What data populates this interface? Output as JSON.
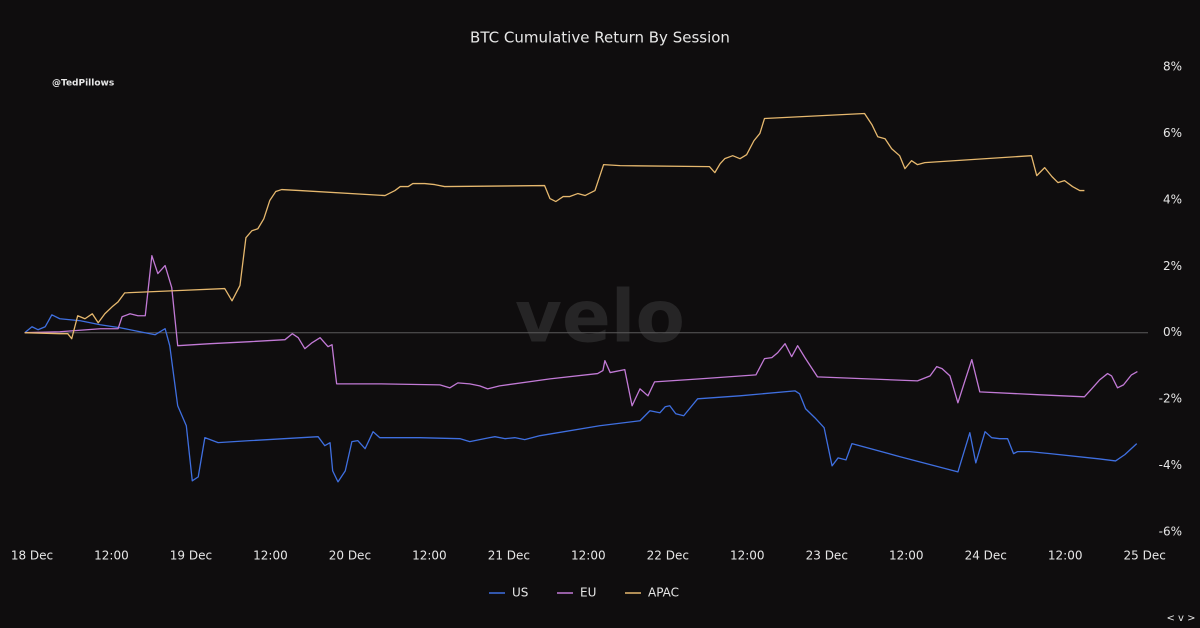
{
  "chart_data": {
    "type": "line",
    "title": "BTC Cumulative Return By Session",
    "watermark": "velo",
    "source_handle": "@TedPillows",
    "navigation": "< v >",
    "xlim": [
      -1.1,
      168.5
    ],
    "xticks": [
      {
        "value": 0,
        "label": "18 Dec"
      },
      {
        "value": 12,
        "label": "12:00"
      },
      {
        "value": 24,
        "label": "19 Dec"
      },
      {
        "value": 36,
        "label": "12:00"
      },
      {
        "value": 48,
        "label": "20 Dec"
      },
      {
        "value": 60,
        "label": "12:00"
      },
      {
        "value": 72,
        "label": "21 Dec"
      },
      {
        "value": 84,
        "label": "12:00"
      },
      {
        "value": 96,
        "label": "22 Dec"
      },
      {
        "value": 108,
        "label": "12:00"
      },
      {
        "value": 120,
        "label": "23 Dec"
      },
      {
        "value": 132,
        "label": "12:00"
      },
      {
        "value": 144,
        "label": "24 Dec"
      },
      {
        "value": 156,
        "label": "12:00"
      },
      {
        "value": 168,
        "label": "25 Dec"
      }
    ],
    "ylim": [
      -6,
      8
    ],
    "yticks": [
      {
        "value": 8,
        "label": "8%"
      },
      {
        "value": 6,
        "label": "6%"
      },
      {
        "value": 4,
        "label": "4%"
      },
      {
        "value": 2,
        "label": "2%"
      },
      {
        "value": 0,
        "label": "0%"
      },
      {
        "value": -2,
        "label": "-2%"
      },
      {
        "value": -4,
        "label": "-4%"
      },
      {
        "value": -6,
        "label": "-6%"
      }
    ],
    "y_axis_side": "right",
    "zero_line": true,
    "legend": "bottom",
    "series": [
      {
        "name": "US",
        "color": "#3f6fe0",
        "x": [
          -1.1,
          0,
          0.9,
          2,
          3,
          4.2,
          7.3,
          10.3,
          13.3,
          16.3,
          18.6,
          20.1,
          20.8,
          22,
          23.3,
          24.2,
          25.1,
          26.1,
          28.1,
          32.9,
          43.2,
          44.2,
          45,
          45.4,
          46.2,
          47.3,
          48.3,
          49.2,
          50.3,
          51.5,
          52.5,
          58.6,
          64.6,
          66.1,
          67.6,
          69.1,
          69.9,
          71.4,
          72.9,
          74.4,
          76.7,
          85.7,
          91.8,
          93.3,
          94.8,
          95.6,
          96.3,
          97.2,
          98.4,
          100.5,
          106.9,
          115.2,
          115.9,
          116.8,
          118.2,
          119.6,
          120.8,
          121.7,
          122.9,
          123.8,
          131,
          139.8,
          141.6,
          142.5,
          143.9,
          144.9,
          146.1,
          147.3,
          148.2,
          148.8,
          150.6,
          153.7,
          161.2,
          163.6,
          165,
          166.8
        ],
        "values": [
          0,
          0.18,
          0.09,
          0.18,
          0.54,
          0.42,
          0.36,
          0.24,
          0.15,
          0.03,
          -0.06,
          0.12,
          -0.39,
          -2.2,
          -2.8,
          -4.46,
          -4.34,
          -3.16,
          -3.31,
          -3.25,
          -3.13,
          -3.4,
          -3.31,
          -4.16,
          -4.49,
          -4.16,
          -3.28,
          -3.25,
          -3.49,
          -2.98,
          -3.16,
          -3.16,
          -3.19,
          -3.28,
          -3.22,
          -3.16,
          -3.13,
          -3.19,
          -3.16,
          -3.22,
          -3.1,
          -2.8,
          -2.65,
          -2.35,
          -2.41,
          -2.23,
          -2.2,
          -2.44,
          -2.5,
          -1.99,
          -1.9,
          -1.75,
          -1.84,
          -2.29,
          -2.56,
          -2.86,
          -4.01,
          -3.77,
          -3.83,
          -3.34,
          -3.73,
          -4.19,
          -3.01,
          -3.92,
          -2.98,
          -3.16,
          -3.19,
          -3.19,
          -3.64,
          -3.58,
          -3.58,
          -3.64,
          -3.8,
          -3.86,
          -3.67,
          -3.34
        ]
      },
      {
        "name": "EU",
        "color": "#c27ad6",
        "x": [
          -1.1,
          4.2,
          10.3,
          13,
          13.6,
          14.8,
          16,
          17.1,
          18.1,
          19,
          20.1,
          21.1,
          22,
          26.9,
          32.9,
          38.2,
          39.3,
          40.2,
          41.2,
          42.3,
          43.5,
          44.7,
          45.3,
          46,
          52.5,
          61.6,
          63.1,
          64.3,
          66.1,
          67.6,
          68.8,
          70.6,
          78.2,
          85.4,
          86.2,
          86.5,
          87.3,
          89.5,
          90.6,
          91.8,
          93,
          94,
          100.8,
          109.3,
          110.6,
          111.7,
          112.6,
          113.7,
          114.7,
          115.6,
          116.7,
          118.6,
          133.7,
          135.6,
          136.6,
          137.4,
          138.6,
          139.8,
          141,
          141.9,
          143.1,
          152.2,
          158.9,
          160,
          161.2,
          162.4,
          163,
          163.9,
          164.8,
          166,
          166.9
        ],
        "values": [
          0,
          0.03,
          0.12,
          0.12,
          0.48,
          0.57,
          0.51,
          0.51,
          2.32,
          1.78,
          2.02,
          1.36,
          -0.39,
          -0.33,
          -0.27,
          -0.21,
          -0.03,
          -0.15,
          -0.48,
          -0.3,
          -0.15,
          -0.42,
          -0.36,
          -1.54,
          -1.54,
          -1.57,
          -1.66,
          -1.51,
          -1.54,
          -1.6,
          -1.69,
          -1.6,
          -1.39,
          -1.23,
          -1.14,
          -0.84,
          -1.2,
          -1.11,
          -2.2,
          -1.69,
          -1.9,
          -1.48,
          -1.39,
          -1.27,
          -0.78,
          -0.75,
          -0.6,
          -0.33,
          -0.72,
          -0.39,
          -0.75,
          -1.33,
          -1.45,
          -1.3,
          -1.02,
          -1.08,
          -1.3,
          -2.11,
          -1.36,
          -0.81,
          -1.78,
          -1.87,
          -1.93,
          -1.69,
          -1.42,
          -1.23,
          -1.3,
          -1.66,
          -1.57,
          -1.27,
          -1.17
        ]
      },
      {
        "name": "APAC",
        "color": "#e6b86e",
        "x": [
          -1.1,
          4.2,
          5.4,
          6,
          6.9,
          8,
          9.1,
          10,
          11,
          12.1,
          13,
          14,
          22.3,
          29.1,
          30.2,
          31.4,
          32.3,
          33.2,
          34.1,
          35,
          35.9,
          36.8,
          37.7,
          40.5,
          53.3,
          54.8,
          55.6,
          56.8,
          57.5,
          59.3,
          60.8,
          62.3,
          77.4,
          78.2,
          79.1,
          80.2,
          81.2,
          82.4,
          83.5,
          85,
          86.3,
          88.8,
          102.3,
          103.1,
          103.9,
          104.6,
          105.8,
          106.9,
          107.9,
          109,
          109.9,
          110.6,
          125.7,
          126.8,
          127.7,
          128.8,
          129.8,
          131,
          131.8,
          132.8,
          133.7,
          134.8,
          150.9,
          151.7,
          152.9,
          154,
          154.9,
          155.9,
          157.1,
          158.2,
          158.9
        ],
        "values": [
          0,
          -0.03,
          -0.03,
          -0.18,
          0.51,
          0.42,
          0.57,
          0.3,
          0.57,
          0.78,
          0.93,
          1.2,
          1.27,
          1.33,
          0.96,
          1.42,
          2.86,
          3.07,
          3.13,
          3.43,
          3.98,
          4.25,
          4.31,
          4.28,
          4.13,
          4.28,
          4.4,
          4.4,
          4.49,
          4.49,
          4.46,
          4.4,
          4.43,
          4.04,
          3.95,
          4.1,
          4.1,
          4.19,
          4.13,
          4.28,
          5.06,
          5.03,
          5,
          4.82,
          5.09,
          5.24,
          5.33,
          5.24,
          5.36,
          5.78,
          6,
          6.45,
          6.6,
          6.27,
          5.9,
          5.84,
          5.54,
          5.33,
          4.94,
          5.18,
          5.06,
          5.12,
          5.33,
          4.73,
          4.97,
          4.7,
          4.52,
          4.58,
          4.4,
          4.28,
          4.28
        ]
      }
    ]
  }
}
